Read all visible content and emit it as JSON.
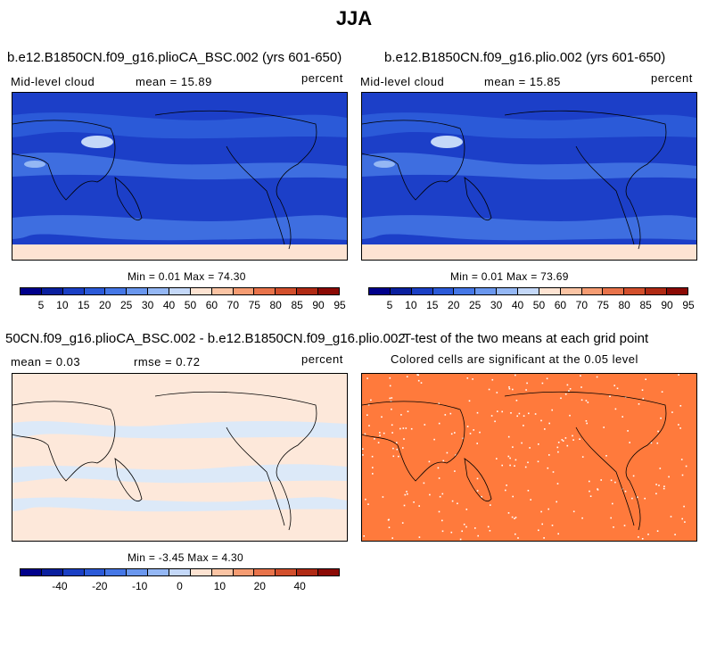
{
  "title": "JJA",
  "panels": [
    {
      "title": "b.e12.B1850CN.f09_g16.plioCA_BSC.002 (yrs 601-650)",
      "left_label": "Mid-level cloud",
      "center_label": "mean =  15.89",
      "right_label": "percent",
      "minmax": "Min =   0.01 Max =  74.30",
      "mean_value": 15.89,
      "min_value": 0.01,
      "max_value": 74.3
    },
    {
      "title": "b.e12.B1850CN.f09_g16.plio.002 (yrs 601-650)",
      "left_label": "Mid-level cloud",
      "center_label": "mean =  15.85",
      "right_label": "percent",
      "minmax": "Min =   0.01 Max =  73.69",
      "mean_value": 15.85,
      "min_value": 0.01,
      "max_value": 73.69
    },
    {
      "title": "50CN.f09_g16.plioCA_BSC.002 - b.e12.B1850CN.f09_g16.plio.002",
      "left_label": "mean =   0.03",
      "center_label": "rmse =   0.72",
      "right_label": "percent",
      "minmax": "Min =  -3.45 Max =   4.30",
      "mean_value": 0.03,
      "rmse_value": 0.72,
      "min_value": -3.45,
      "max_value": 4.3
    },
    {
      "title": "T-test of the two means at each grid point",
      "center_label": "Colored cells are significant at the 0.05 level",
      "significance_level": 0.05
    }
  ],
  "colorbar_colors": [
    "#00008b",
    "#0a1f9e",
    "#1a3fc4",
    "#2b5ad8",
    "#4577e6",
    "#6a97ee",
    "#94b7f4",
    "#c4d8f8",
    "#fde3d2",
    "#fac4a4",
    "#f59c72",
    "#e8734a",
    "#d24f2c",
    "#b02a14",
    "#8b0a05"
  ],
  "colorbar_a_ticks": [
    "5",
    "10",
    "15",
    "20",
    "25",
    "30",
    "40",
    "50",
    "60",
    "70",
    "75",
    "80",
    "85",
    "90",
    "95"
  ],
  "colorbar_b_ticks": [
    "-40",
    "-20",
    "-10",
    "0",
    "10",
    "20",
    "40"
  ],
  "colors": {
    "abs_background": "#1c3fc8",
    "abs_bands": "#3e6ee0",
    "abs_highlight": "#c4d8f8",
    "diff_background": "#fde8da",
    "diff_negative": "#dce9f8",
    "ttest_fill": "#ff7a3c",
    "coast": "#000000"
  }
}
